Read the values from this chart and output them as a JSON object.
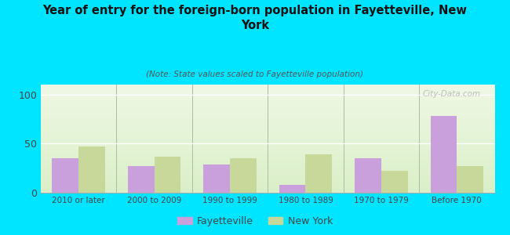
{
  "title": "Year of entry for the foreign-born population in Fayetteville, New\nYork",
  "subtitle": "(Note: State values scaled to Fayetteville population)",
  "categories": [
    "2010 or later",
    "2000 to 2009",
    "1990 to 1999",
    "1980 to 1989",
    "1970 to 1979",
    "Before 1970"
  ],
  "fayetteville": [
    35,
    27,
    29,
    8,
    35,
    78
  ],
  "new_york": [
    47,
    37,
    35,
    39,
    22,
    27
  ],
  "fayetteville_color": "#c9a0dc",
  "new_york_color": "#c8d89a",
  "background_color": "#00e5ff",
  "ylim": [
    0,
    110
  ],
  "yticks": [
    0,
    50,
    100
  ],
  "bar_width": 0.35,
  "watermark": "City-Data.com",
  "legend_labels": [
    "Fayetteville",
    "New York"
  ]
}
